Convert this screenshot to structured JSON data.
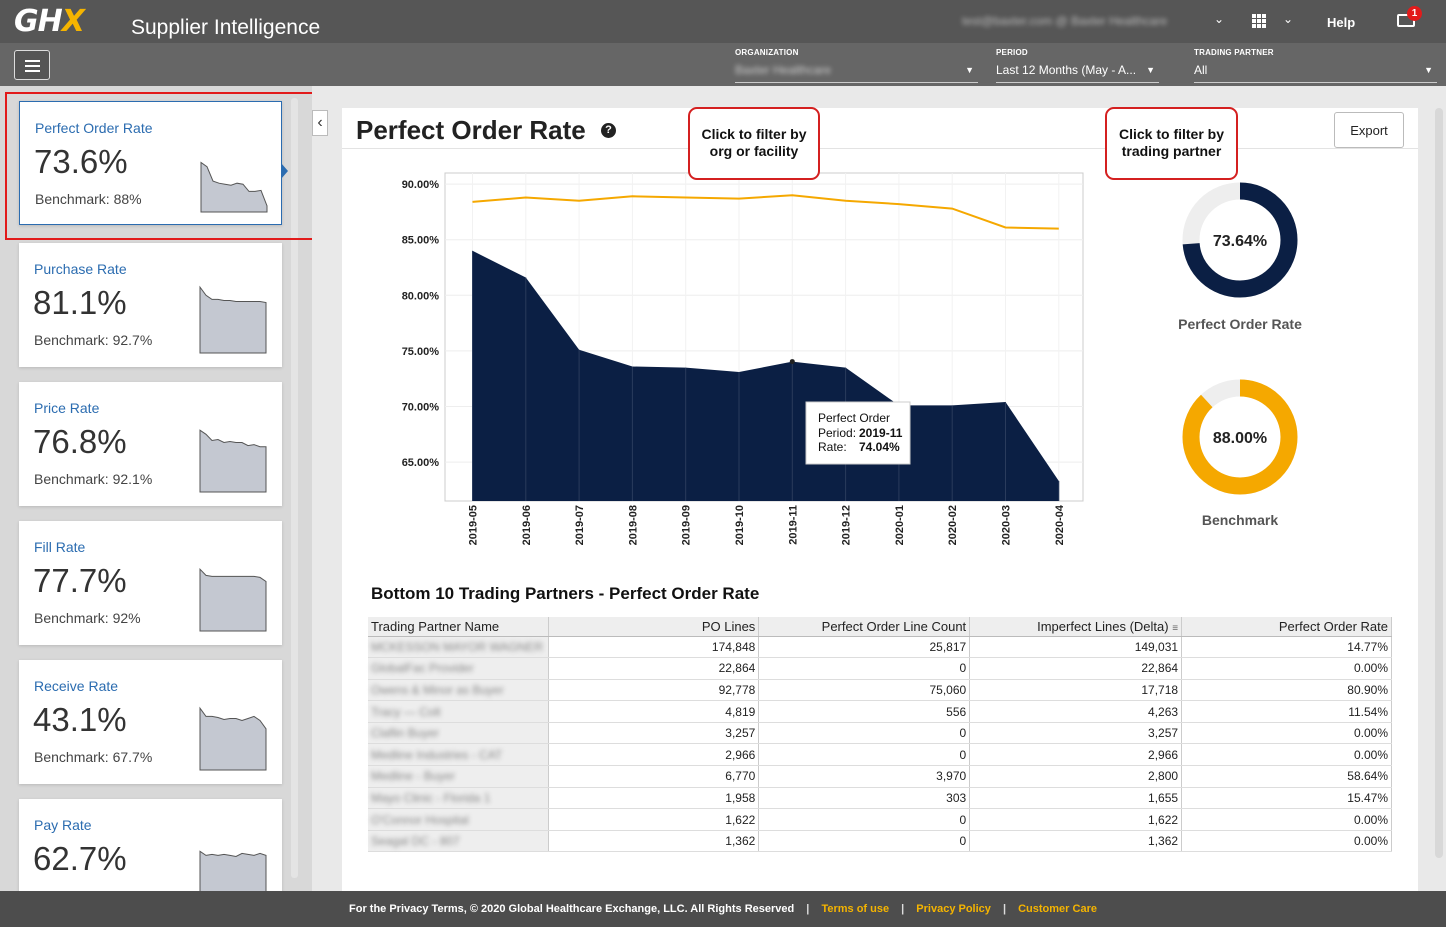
{
  "header": {
    "logo": "GHX",
    "app_title": "Supplier Intelligence",
    "user_email": "test@baxter.com @ Baxter Healthcare",
    "help": "Help",
    "notification_count": "1"
  },
  "filters": {
    "organization_label": "ORGANIZATION",
    "organization_value": "Baxter Healthcare",
    "period_label": "PERIOD",
    "period_value": "Last 12 Months (May - A...",
    "trading_partner_label": "TRADING PARTNER",
    "trading_partner_value": "All"
  },
  "sidebar": {
    "cards": [
      {
        "title": "Perfect Order Rate",
        "value": "73.6%",
        "benchmark": "Benchmark: 88%",
        "spark": [
          84,
          82,
          75,
          74,
          73.5,
          73,
          74,
          73.5,
          70,
          70,
          70.5,
          63
        ]
      },
      {
        "title": "Purchase Rate",
        "value": "81.1%",
        "benchmark": "Benchmark: 92.7%",
        "spark": [
          92,
          88,
          86,
          86,
          85.5,
          85.5,
          85,
          85,
          85,
          85,
          85,
          84.5
        ]
      },
      {
        "title": "Price Rate",
        "value": "76.8%",
        "benchmark": "Benchmark: 92.1%",
        "spark": [
          90,
          88,
          85,
          85.5,
          84,
          84.5,
          84,
          84,
          82.5,
          83,
          82,
          82
        ]
      },
      {
        "title": "Fill Rate",
        "value": "77.7%",
        "benchmark": "Benchmark: 92%",
        "spark": [
          90,
          87,
          86.5,
          86.5,
          86.5,
          86.5,
          86.5,
          86.5,
          86.5,
          86.5,
          86,
          84
        ]
      },
      {
        "title": "Receive Rate",
        "value": "43.1%",
        "benchmark": "Benchmark: 67.7%",
        "spark": [
          90,
          86,
          86,
          85.5,
          84.5,
          85,
          85,
          84,
          85,
          86,
          84,
          80
        ]
      },
      {
        "title": "Pay Rate",
        "value": "62.7%",
        "benchmark": "",
        "spark": [
          88,
          86,
          86.5,
          86,
          86.5,
          86,
          85.5,
          87,
          86.5,
          86,
          87,
          86
        ]
      }
    ]
  },
  "main": {
    "title": "Perfect Order Rate",
    "help_icon": "question-icon",
    "export_label": "Export",
    "callout_org": [
      "Click to filter by",
      "org or facility"
    ],
    "callout_tp": [
      "Click to filter by",
      "trading partner"
    ]
  },
  "chart_data": {
    "type": "area",
    "x": [
      "2019-05",
      "2019-06",
      "2019-07",
      "2019-08",
      "2019-09",
      "2019-10",
      "2019-11",
      "2019-12",
      "2020-01",
      "2020-02",
      "2020-03",
      "2020-04"
    ],
    "series": [
      {
        "name": "Perfect Order",
        "values": [
          84.0,
          81.6,
          75.1,
          73.6,
          73.5,
          73.1,
          74.04,
          73.5,
          70.1,
          70.1,
          70.4,
          63.3
        ],
        "color": "#0b1f44"
      },
      {
        "name": "Benchmark",
        "values": [
          88.4,
          88.8,
          88.5,
          88.9,
          88.8,
          88.7,
          89.0,
          88.5,
          88.2,
          87.8,
          86.1,
          86.0
        ],
        "color": "#f5a800"
      }
    ],
    "yticks": [
      "90.00%",
      "85.00%",
      "80.00%",
      "75.00%",
      "70.00%",
      "65.00%"
    ],
    "ylim": [
      61.5,
      91
    ],
    "tooltip": {
      "title": "Perfect Order",
      "period_label": "Period:",
      "period_value": "2019-11",
      "rate_label": "Rate:",
      "rate_value": "74.04%"
    },
    "donuts": [
      {
        "value": 73.64,
        "label_text": "73.64%",
        "caption": "Perfect Order Rate",
        "color": "#0b1f44"
      },
      {
        "value": 88.0,
        "label_text": "88.00%",
        "caption": "Benchmark",
        "color": "#f5a800"
      }
    ]
  },
  "table": {
    "title": "Bottom 10 Trading Partners - Perfect Order Rate",
    "columns": [
      "Trading Partner Name",
      "PO Lines",
      "Perfect Order Line Count",
      "Imperfect Lines (Delta)",
      "Perfect Order Rate"
    ],
    "rows": [
      [
        "MCKESSON MAYOR WAGNER",
        "174,848",
        "25,817",
        "149,031",
        "14.77%"
      ],
      [
        "GlobalFac Provider",
        "22,864",
        "0",
        "22,864",
        "0.00%"
      ],
      [
        "Owens & Minor as Buyer",
        "92,778",
        "75,060",
        "17,718",
        "80.90%"
      ],
      [
        "Tracy — Colt",
        "4,819",
        "556",
        "4,263",
        "11.54%"
      ],
      [
        "Claflin Buyer",
        "3,257",
        "0",
        "3,257",
        "0.00%"
      ],
      [
        "Medline Industries - CAT",
        "2,966",
        "0",
        "2,966",
        "0.00%"
      ],
      [
        "Medline - Buyer",
        "6,770",
        "3,970",
        "2,800",
        "58.64%"
      ],
      [
        "Mayo Clinic - Florida 1",
        "1,958",
        "303",
        "1,655",
        "15.47%"
      ],
      [
        "O'Connor Hospital",
        "1,622",
        "0",
        "1,622",
        "0.00%"
      ],
      [
        "Seagal DC - 807",
        "1,362",
        "0",
        "1,362",
        "0.00%"
      ]
    ]
  },
  "footer": {
    "copyright": "For the Privacy Terms, © 2020 Global Healthcare Exchange, LLC. All Rights Reserved",
    "terms": "Terms of use",
    "privacy": "Privacy Policy",
    "care": "Customer Care"
  }
}
